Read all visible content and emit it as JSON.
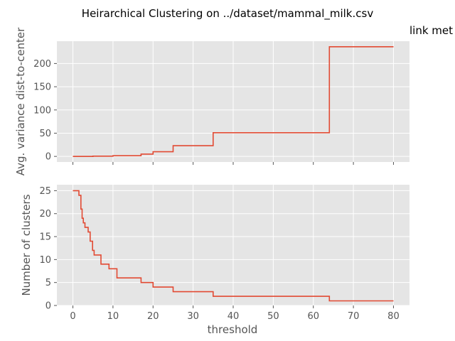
{
  "colors": {
    "panel_bg": "#E5E5E5",
    "grid": "#FFFFFF",
    "line": "#E24A33",
    "tick_text": "#555555"
  },
  "chart_data": [
    {
      "type": "line",
      "title": "Heirarchical Clustering on ../dataset/mammal_milk.csv",
      "annotation": "link met",
      "xlabel": "",
      "ylabel": "Avg. variance dist-to-center",
      "xlim": [
        -4,
        84
      ],
      "ylim": [
        -12,
        248
      ],
      "xticks": [
        0,
        10,
        20,
        30,
        40,
        50,
        60,
        70,
        80
      ],
      "yticks": [
        0,
        50,
        100,
        150,
        200
      ],
      "xticks_labels_visible": false,
      "grid": true,
      "step": "post",
      "x": [
        0,
        5,
        10,
        17,
        20,
        25,
        35,
        64,
        80
      ],
      "y": [
        0,
        0.5,
        1.5,
        5,
        10,
        23,
        51,
        236,
        236
      ]
    },
    {
      "type": "line",
      "xlabel": "threshold",
      "ylabel": "Number of clusters",
      "xlim": [
        -4,
        84
      ],
      "ylim": [
        0,
        26.3
      ],
      "xticks": [
        0,
        10,
        20,
        30,
        40,
        50,
        60,
        70,
        80
      ],
      "yticks": [
        0,
        5,
        10,
        15,
        20,
        25
      ],
      "grid": true,
      "step": "post",
      "x": [
        0,
        1.5,
        2,
        2.3,
        2.6,
        3,
        3.8,
        4.3,
        4.9,
        5.3,
        5.8,
        7,
        9,
        11,
        17,
        20,
        25,
        35,
        64,
        80
      ],
      "y": [
        25,
        24,
        21,
        19,
        18,
        17,
        16,
        14,
        12,
        11,
        11,
        9,
        8,
        6,
        5,
        4,
        3,
        2,
        1,
        1
      ]
    }
  ]
}
